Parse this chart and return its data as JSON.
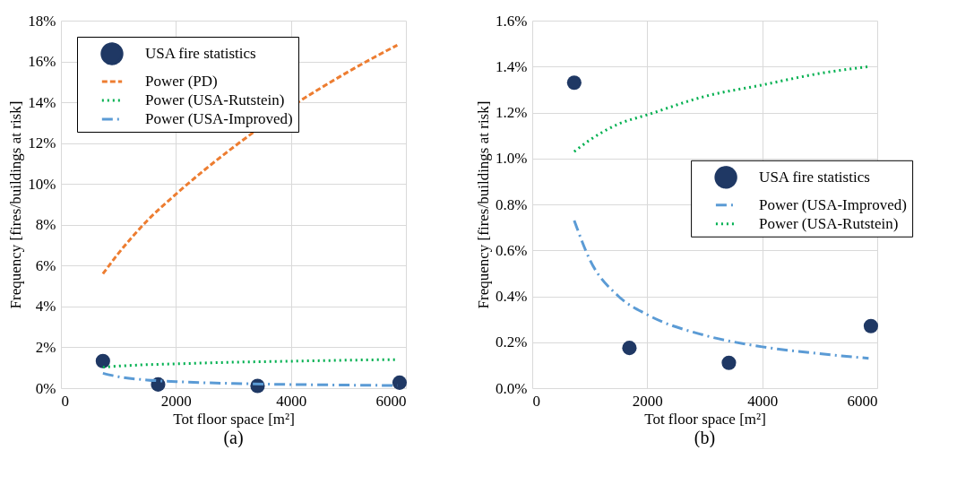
{
  "chart_data": [
    {
      "type": "scatter",
      "xlabel": "Tot floor space [m²]",
      "ylabel": "Frequency [fires/buildings at risk]",
      "annotations": [
        "(a)"
      ],
      "x": [
        730,
        1690,
        3420,
        5890
      ],
      "xlim": [
        0,
        6000
      ],
      "xticks": [
        0,
        2000,
        4000,
        6000
      ],
      "ylim": [
        0,
        18
      ],
      "yticks": [
        {
          "value": 0,
          "label": "0%"
        },
        {
          "value": 2,
          "label": "2%"
        },
        {
          "value": 4,
          "label": "4%"
        },
        {
          "value": 6,
          "label": "6%"
        },
        {
          "value": 8,
          "label": "8%"
        },
        {
          "value": 10,
          "label": "10%"
        },
        {
          "value": 12,
          "label": "12%"
        },
        {
          "value": 14,
          "label": "14%"
        },
        {
          "value": 16,
          "label": "16%"
        },
        {
          "value": 18,
          "label": "18%"
        }
      ],
      "grid": true,
      "legend": "top left",
      "series": [
        {
          "name": "USA fire statistics",
          "marker": "circle",
          "color": "#1f3864",
          "values": [
            1.33,
            0.18,
            0.11,
            0.27
          ]
        },
        {
          "name": "Power (PD)",
          "type": "line",
          "line_style": "dashed",
          "color": "#ed7d31",
          "x": [
            730,
            1000,
            1500,
            2000,
            3000,
            5000,
            5850
          ],
          "values": [
            5.6,
            6.6,
            8.2,
            9.5,
            11.8,
            15.5,
            16.8
          ]
        },
        {
          "name": "Power (USA-Rutstein)",
          "type": "line",
          "line_style": "dotted",
          "color": "#00b050",
          "x": [
            730,
            1000,
            1500,
            2000,
            3000,
            4000,
            5000,
            5850
          ],
          "values": [
            1.03,
            1.08,
            1.15,
            1.19,
            1.27,
            1.32,
            1.37,
            1.4
          ]
        },
        {
          "name": "Power (USA-Improved)",
          "type": "line",
          "line_style": "dashdot",
          "color": "#5b9bd5",
          "x": [
            730,
            1000,
            1500,
            2000,
            3000,
            4000,
            5000,
            5850
          ],
          "values": [
            0.73,
            0.56,
            0.4,
            0.32,
            0.23,
            0.18,
            0.15,
            0.13
          ]
        }
      ]
    },
    {
      "type": "scatter",
      "xlabel": "Tot floor space [m²]",
      "ylabel": "Frequency [fires/buildings at risk]",
      "annotations": [
        "(b)"
      ],
      "x": [
        730,
        1690,
        3420,
        5890
      ],
      "xlim": [
        0,
        6000
      ],
      "xticks": [
        0,
        2000,
        4000,
        6000
      ],
      "ylim": [
        0,
        1.6
      ],
      "yticks": [
        {
          "value": 0,
          "label": "0.0%"
        },
        {
          "value": 0.2,
          "label": "0.2%"
        },
        {
          "value": 0.4,
          "label": "0.4%"
        },
        {
          "value": 0.6,
          "label": "0.6%"
        },
        {
          "value": 0.8,
          "label": "0.8%"
        },
        {
          "value": 1.0,
          "label": "1.0%"
        },
        {
          "value": 1.2,
          "label": "1.2%"
        },
        {
          "value": 1.4,
          "label": "1.4%"
        },
        {
          "value": 1.6,
          "label": "1.6%"
        }
      ],
      "grid": true,
      "legend": "right",
      "series": [
        {
          "name": "USA fire statistics",
          "marker": "circle",
          "color": "#1f3864",
          "values": [
            1.33,
            0.175,
            0.11,
            0.27
          ]
        },
        {
          "name": "Power (USA-Improved)",
          "type": "line",
          "line_style": "dashdot",
          "color": "#5b9bd5",
          "x": [
            730,
            1000,
            1500,
            2000,
            3000,
            4000,
            5000,
            5850
          ],
          "values": [
            0.73,
            0.56,
            0.4,
            0.32,
            0.23,
            0.18,
            0.15,
            0.13
          ]
        },
        {
          "name": "Power (USA-Rutstein)",
          "type": "line",
          "line_style": "dotted",
          "color": "#00b050",
          "x": [
            730,
            1000,
            1500,
            2000,
            3000,
            4000,
            5000,
            5850
          ],
          "values": [
            1.03,
            1.08,
            1.15,
            1.19,
            1.27,
            1.32,
            1.37,
            1.4
          ]
        }
      ]
    }
  ]
}
